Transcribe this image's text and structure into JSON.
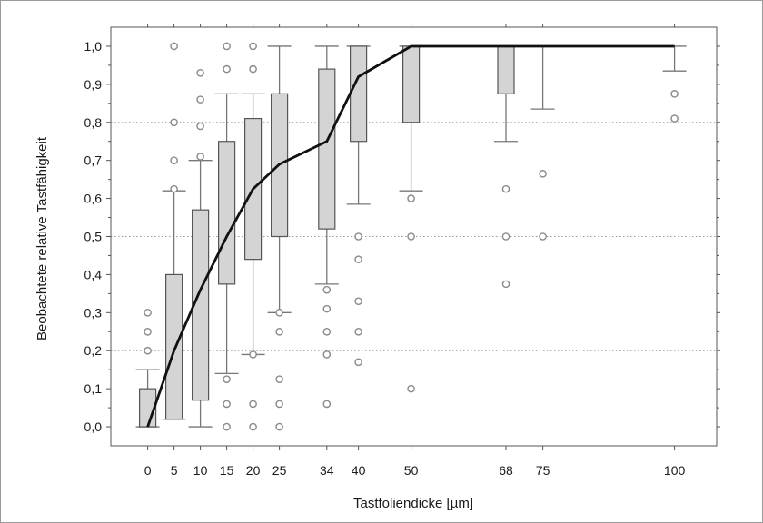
{
  "chart_data": {
    "type": "box",
    "xlabel": "Tastfoliendicke [µm]",
    "ylabel": "Beobachtete relative Tastfähigkeit",
    "xlim": [
      -7,
      108
    ],
    "ylim": [
      -0.05,
      1.05
    ],
    "x_ticks": [
      0,
      5,
      10,
      15,
      20,
      25,
      34,
      40,
      50,
      68,
      75,
      100
    ],
    "y_ticks": [
      0.0,
      0.1,
      0.2,
      0.3,
      0.4,
      0.5,
      0.6,
      0.7,
      0.8,
      0.9,
      1.0
    ],
    "y_tick_labels": [
      "0,0",
      "0,1",
      "0,2",
      "0,3",
      "0,4",
      "0,5",
      "0,6",
      "0,7",
      "0,8",
      "0,9",
      "1,0"
    ],
    "gridlines_y": [
      0.2,
      0.5,
      0.8
    ],
    "boxes": [
      {
        "x": 0,
        "whisker_low": 0.0,
        "q1": 0.0,
        "q3": 0.1,
        "whisker_high": 0.15,
        "outliers": [
          0.2,
          0.25,
          0.3
        ]
      },
      {
        "x": 5,
        "whisker_low": 0.02,
        "q1": 0.02,
        "q3": 0.4,
        "whisker_high": 0.62,
        "outliers": [
          0.625,
          0.7,
          0.8,
          1.0
        ]
      },
      {
        "x": 10,
        "whisker_low": 0.0,
        "q1": 0.07,
        "q3": 0.57,
        "whisker_high": 0.7,
        "outliers": [
          0.71,
          0.79,
          0.86,
          0.93
        ]
      },
      {
        "x": 15,
        "whisker_low": 0.14,
        "q1": 0.375,
        "q3": 0.75,
        "whisker_high": 0.875,
        "outliers": [
          0.0,
          0.06,
          0.125,
          0.94,
          1.0
        ]
      },
      {
        "x": 20,
        "whisker_low": 0.19,
        "q1": 0.44,
        "q3": 0.81,
        "whisker_high": 0.875,
        "outliers": [
          0.0,
          0.06,
          0.19,
          0.94,
          1.0
        ]
      },
      {
        "x": 25,
        "whisker_low": 0.3,
        "q1": 0.5,
        "q3": 0.875,
        "whisker_high": 1.0,
        "outliers": [
          0.0,
          0.06,
          0.125,
          0.25,
          0.3
        ]
      },
      {
        "x": 34,
        "whisker_low": 0.375,
        "q1": 0.52,
        "q3": 0.94,
        "whisker_high": 1.0,
        "outliers": [
          0.06,
          0.19,
          0.25,
          0.31,
          0.36
        ]
      },
      {
        "x": 40,
        "whisker_low": 0.585,
        "q1": 0.75,
        "q3": 1.0,
        "whisker_high": 1.0,
        "outliers": [
          0.17,
          0.25,
          0.33,
          0.44,
          0.5
        ]
      },
      {
        "x": 50,
        "whisker_low": 0.62,
        "q1": 0.8,
        "q3": 1.0,
        "whisker_high": 1.0,
        "outliers": [
          0.1,
          0.5,
          0.6
        ]
      },
      {
        "x": 68,
        "whisker_low": 0.75,
        "q1": 0.875,
        "q3": 1.0,
        "whisker_high": 1.0,
        "outliers": [
          0.375,
          0.5,
          0.625
        ]
      },
      {
        "x": 75,
        "whisker_low": 0.835,
        "q1": 1.0,
        "q3": 1.0,
        "whisker_high": 1.0,
        "outliers": [
          0.5,
          0.665
        ]
      },
      {
        "x": 100,
        "whisker_low": 0.935,
        "q1": 1.0,
        "q3": 1.0,
        "whisker_high": 1.0,
        "outliers": [
          0.81,
          0.875
        ]
      }
    ],
    "fit_line": {
      "x": [
        0,
        5,
        10,
        15,
        20,
        25,
        34,
        40,
        50,
        68,
        75,
        100
      ],
      "y": [
        0.0,
        0.2,
        0.36,
        0.5,
        0.625,
        0.69,
        0.75,
        0.92,
        1.0,
        1.0,
        1.0,
        1.0
      ]
    },
    "legend": "none",
    "colors": {
      "box_fill": "#d4d4d4",
      "box_stroke": "#555555",
      "whisker": "#777777",
      "outlier": "#8a8a8a",
      "line": "#111111",
      "grid": "#9a9a9a",
      "axis": "#555555"
    }
  }
}
